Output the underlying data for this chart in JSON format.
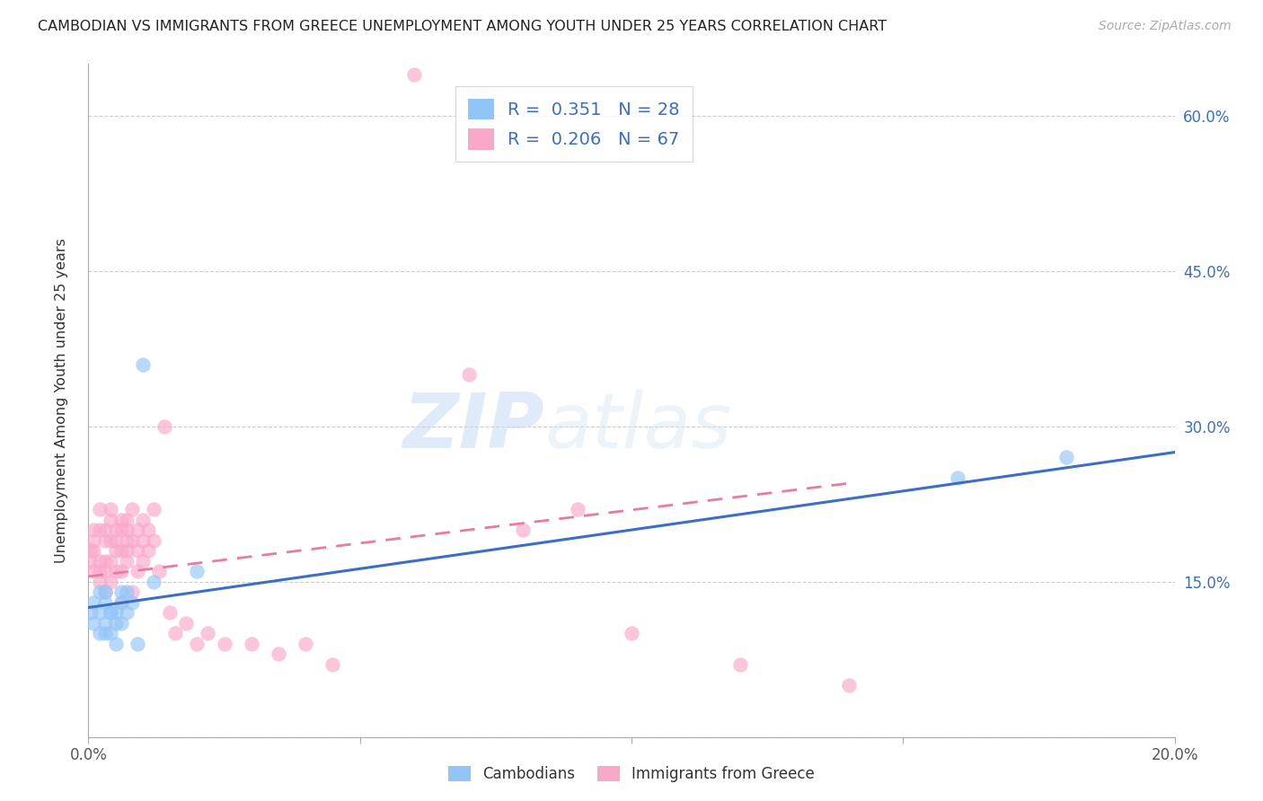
{
  "title": "CAMBODIAN VS IMMIGRANTS FROM GREECE UNEMPLOYMENT AMONG YOUTH UNDER 25 YEARS CORRELATION CHART",
  "source": "Source: ZipAtlas.com",
  "ylabel": "Unemployment Among Youth under 25 years",
  "legend_label1": "Cambodians",
  "legend_label2": "Immigrants from Greece",
  "R1": 0.351,
  "N1": 28,
  "R2": 0.206,
  "N2": 67,
  "color1": "#92C5F7",
  "color2": "#F9A8C9",
  "trend1_color": "#3A6FC4",
  "trend2_color": "#E87BA0",
  "watermark_zip": "ZIP",
  "watermark_atlas": "atlas",
  "xlim": [
    0.0,
    0.2
  ],
  "ylim": [
    0.0,
    0.65
  ],
  "yticks": [
    0.0,
    0.15,
    0.3,
    0.45,
    0.6
  ],
  "xticks": [
    0.0,
    0.05,
    0.1,
    0.15,
    0.2
  ],
  "xtick_labels": [
    "0.0%",
    "",
    "",
    "",
    "20.0%"
  ],
  "ytick_labels_right": [
    "",
    "15.0%",
    "30.0%",
    "45.0%",
    "60.0%"
  ],
  "cambodian_x": [
    0.0005,
    0.001,
    0.001,
    0.002,
    0.002,
    0.002,
    0.003,
    0.003,
    0.003,
    0.003,
    0.004,
    0.004,
    0.004,
    0.005,
    0.005,
    0.005,
    0.006,
    0.006,
    0.006,
    0.007,
    0.007,
    0.008,
    0.009,
    0.01,
    0.012,
    0.02,
    0.16,
    0.18
  ],
  "cambodian_y": [
    0.12,
    0.13,
    0.11,
    0.12,
    0.14,
    0.1,
    0.13,
    0.14,
    0.11,
    0.1,
    0.12,
    0.1,
    0.12,
    0.12,
    0.09,
    0.11,
    0.14,
    0.13,
    0.11,
    0.14,
    0.12,
    0.13,
    0.09,
    0.36,
    0.15,
    0.16,
    0.25,
    0.27
  ],
  "greece_x": [
    0.0002,
    0.0005,
    0.001,
    0.001,
    0.001,
    0.001,
    0.002,
    0.002,
    0.002,
    0.002,
    0.002,
    0.003,
    0.003,
    0.003,
    0.003,
    0.003,
    0.004,
    0.004,
    0.004,
    0.004,
    0.004,
    0.005,
    0.005,
    0.005,
    0.005,
    0.006,
    0.006,
    0.006,
    0.006,
    0.006,
    0.007,
    0.007,
    0.007,
    0.007,
    0.007,
    0.008,
    0.008,
    0.008,
    0.009,
    0.009,
    0.009,
    0.01,
    0.01,
    0.01,
    0.011,
    0.011,
    0.012,
    0.012,
    0.013,
    0.014,
    0.015,
    0.016,
    0.018,
    0.02,
    0.022,
    0.025,
    0.03,
    0.035,
    0.04,
    0.045,
    0.06,
    0.07,
    0.08,
    0.09,
    0.1,
    0.12,
    0.14
  ],
  "greece_y": [
    0.17,
    0.18,
    0.2,
    0.16,
    0.18,
    0.19,
    0.15,
    0.2,
    0.17,
    0.16,
    0.22,
    0.14,
    0.17,
    0.19,
    0.2,
    0.16,
    0.17,
    0.19,
    0.21,
    0.15,
    0.22,
    0.18,
    0.2,
    0.16,
    0.19,
    0.13,
    0.18,
    0.2,
    0.16,
    0.21,
    0.19,
    0.2,
    0.18,
    0.21,
    0.17,
    0.19,
    0.22,
    0.14,
    0.18,
    0.2,
    0.16,
    0.17,
    0.19,
    0.21,
    0.18,
    0.2,
    0.22,
    0.19,
    0.16,
    0.3,
    0.12,
    0.1,
    0.11,
    0.09,
    0.1,
    0.09,
    0.09,
    0.08,
    0.09,
    0.07,
    0.64,
    0.35,
    0.2,
    0.22,
    0.1,
    0.07,
    0.05
  ],
  "blue_trend_x": [
    0.0,
    0.2
  ],
  "blue_trend_y": [
    0.125,
    0.275
  ],
  "pink_trend_x": [
    0.0,
    0.14
  ],
  "pink_trend_y": [
    0.155,
    0.245
  ]
}
